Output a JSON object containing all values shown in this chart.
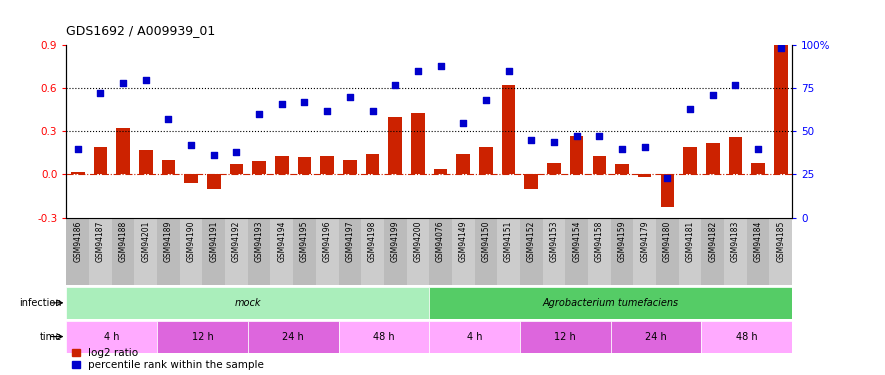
{
  "title": "GDS1692 / A009939_01",
  "samples": [
    "GSM94186",
    "GSM94187",
    "GSM94188",
    "GSM94201",
    "GSM94189",
    "GSM94190",
    "GSM94191",
    "GSM94192",
    "GSM94193",
    "GSM94194",
    "GSM94195",
    "GSM94196",
    "GSM94197",
    "GSM94198",
    "GSM94199",
    "GSM94200",
    "GSM94076",
    "GSM94149",
    "GSM94150",
    "GSM94151",
    "GSM94152",
    "GSM94153",
    "GSM94154",
    "GSM94158",
    "GSM94159",
    "GSM94179",
    "GSM94180",
    "GSM94181",
    "GSM94182",
    "GSM94183",
    "GSM94184",
    "GSM94185"
  ],
  "log2_ratio": [
    0.02,
    0.19,
    0.32,
    0.17,
    0.1,
    -0.06,
    -0.1,
    0.07,
    0.09,
    0.13,
    0.12,
    0.13,
    0.1,
    0.14,
    0.4,
    0.43,
    0.04,
    0.14,
    0.19,
    0.62,
    -0.1,
    0.08,
    0.27,
    0.13,
    0.07,
    -0.02,
    -0.23,
    0.19,
    0.22,
    0.26,
    0.08,
    0.9
  ],
  "percentile_rank": [
    40,
    72,
    78,
    80,
    57,
    42,
    36,
    38,
    60,
    66,
    67,
    62,
    70,
    62,
    77,
    85,
    88,
    55,
    68,
    85,
    45,
    44,
    47,
    47,
    40,
    41,
    23,
    63,
    71,
    77,
    40,
    98
  ],
  "infection_groups": [
    {
      "label": "mock",
      "start": 0,
      "end": 16,
      "color": "#aaeebb"
    },
    {
      "label": "Agrobacterium tumefaciens",
      "start": 16,
      "end": 32,
      "color": "#55cc66"
    }
  ],
  "time_groups": [
    {
      "label": "4 h",
      "start": 0,
      "end": 4,
      "color": "#ffaaff"
    },
    {
      "label": "12 h",
      "start": 4,
      "end": 8,
      "color": "#dd66dd"
    },
    {
      "label": "24 h",
      "start": 8,
      "end": 12,
      "color": "#dd66dd"
    },
    {
      "label": "48 h",
      "start": 12,
      "end": 16,
      "color": "#ffaaff"
    },
    {
      "label": "4 h",
      "start": 16,
      "end": 20,
      "color": "#ffaaff"
    },
    {
      "label": "12 h",
      "start": 20,
      "end": 24,
      "color": "#dd66dd"
    },
    {
      "label": "24 h",
      "start": 24,
      "end": 28,
      "color": "#dd66dd"
    },
    {
      "label": "48 h",
      "start": 28,
      "end": 32,
      "color": "#ffaaff"
    }
  ],
  "ylim_left": [
    -0.3,
    0.9
  ],
  "ylim_right": [
    0,
    100
  ],
  "bar_color": "#cc2200",
  "scatter_color": "#0000cc",
  "dotted_lines": [
    0.3,
    0.6
  ],
  "right_ticks": [
    0,
    25,
    50,
    75,
    100
  ],
  "right_tick_labels": [
    "0",
    "25",
    "50",
    "75",
    "100%"
  ],
  "left_ticks": [
    -0.3,
    0.0,
    0.3,
    0.6,
    0.9
  ],
  "plot_bg": "#ffffff",
  "xtick_bg": "#cccccc"
}
